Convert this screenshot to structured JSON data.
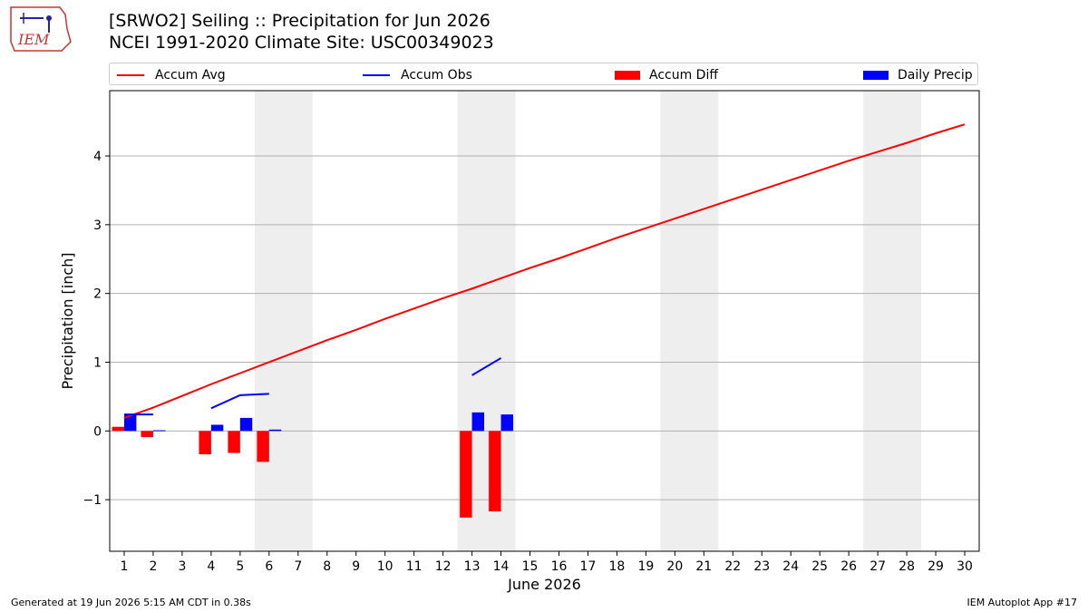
{
  "header": {
    "title_line1": "[SRWO2] Seiling :: Precipitation for Jun 2026",
    "title_line2": "NCEI 1991-2020 Climate Site: USC00349023"
  },
  "logo": {
    "text": "IEM",
    "icon": "iem-logo-icon"
  },
  "footer": {
    "left": "Generated at 19 Jun 2026 5:15 AM CDT in 0.38s",
    "right": "IEM Autoplot App #17"
  },
  "colors": {
    "avg": "#ff0000",
    "obs": "#0000ff",
    "diff": "#ff0000",
    "daily": "#0000ff",
    "weekend": "#eeeeee",
    "grid": "#b0b0b0"
  },
  "legend": {
    "placement": "top",
    "items": [
      {
        "label": "Accum Avg",
        "kind": "line",
        "color": "#ff0000"
      },
      {
        "label": "Accum Obs",
        "kind": "line",
        "color": "#0000ff"
      },
      {
        "label": "Accum Diff",
        "kind": "bar",
        "color": "#ff0000"
      },
      {
        "label": "Daily Precip",
        "kind": "bar",
        "color": "#0000ff"
      }
    ]
  },
  "chart_data": {
    "type": "bar",
    "xlabel": "June 2026",
    "ylabel": "Precipitation [inch]",
    "ylim": [
      -1.75,
      4.95
    ],
    "yticks": [
      -1,
      0,
      1,
      2,
      3,
      4
    ],
    "ytick_labels": [
      "−1",
      "0",
      "1",
      "2",
      "3",
      "4"
    ],
    "xlim": [
      0.5,
      30.5
    ],
    "days": [
      1,
      2,
      3,
      4,
      5,
      6,
      7,
      8,
      9,
      10,
      11,
      12,
      13,
      14,
      15,
      16,
      17,
      18,
      19,
      20,
      21,
      22,
      23,
      24,
      25,
      26,
      27,
      28,
      29,
      30
    ],
    "weekend_shading": [
      [
        6,
        7
      ],
      [
        13,
        14
      ],
      [
        20,
        21
      ],
      [
        27,
        28
      ]
    ],
    "grid": "y",
    "series": [
      {
        "name": "Accum Avg",
        "kind": "line",
        "x": [
          1,
          2,
          3,
          4,
          5,
          6,
          7,
          8,
          9,
          10,
          11,
          12,
          13,
          14,
          15,
          16,
          17,
          18,
          19,
          20,
          21,
          22,
          23,
          24,
          25,
          26,
          27,
          28,
          29,
          30
        ],
        "values": [
          0.19,
          0.34,
          0.51,
          0.68,
          0.84,
          1.0,
          1.16,
          1.32,
          1.47,
          1.63,
          1.78,
          1.93,
          2.07,
          2.22,
          2.37,
          2.51,
          2.66,
          2.81,
          2.95,
          3.09,
          3.23,
          3.37,
          3.51,
          3.65,
          3.79,
          3.93,
          4.06,
          4.19,
          4.33,
          4.46
        ]
      },
      {
        "name": "Accum Obs",
        "kind": "line",
        "segments": [
          {
            "x": [
              1,
              2
            ],
            "values": [
              0.24,
              0.24
            ]
          },
          {
            "x": [
              4,
              5,
              6
            ],
            "values": [
              0.33,
              0.52,
              0.54
            ]
          },
          {
            "x": [
              13,
              14
            ],
            "values": [
              0.81,
              1.06
            ]
          }
        ]
      },
      {
        "name": "Accum Diff",
        "kind": "bar",
        "x": [
          1,
          2,
          4,
          5,
          6,
          13,
          14
        ],
        "values": [
          0.06,
          -0.09,
          -0.34,
          -0.32,
          -0.45,
          -1.26,
          -1.17
        ]
      },
      {
        "name": "Daily Precip",
        "kind": "bar",
        "x": [
          1,
          2,
          4,
          5,
          6,
          13,
          14
        ],
        "values": [
          0.24,
          0.01,
          0.09,
          0.19,
          0.02,
          0.27,
          0.24
        ]
      }
    ]
  }
}
